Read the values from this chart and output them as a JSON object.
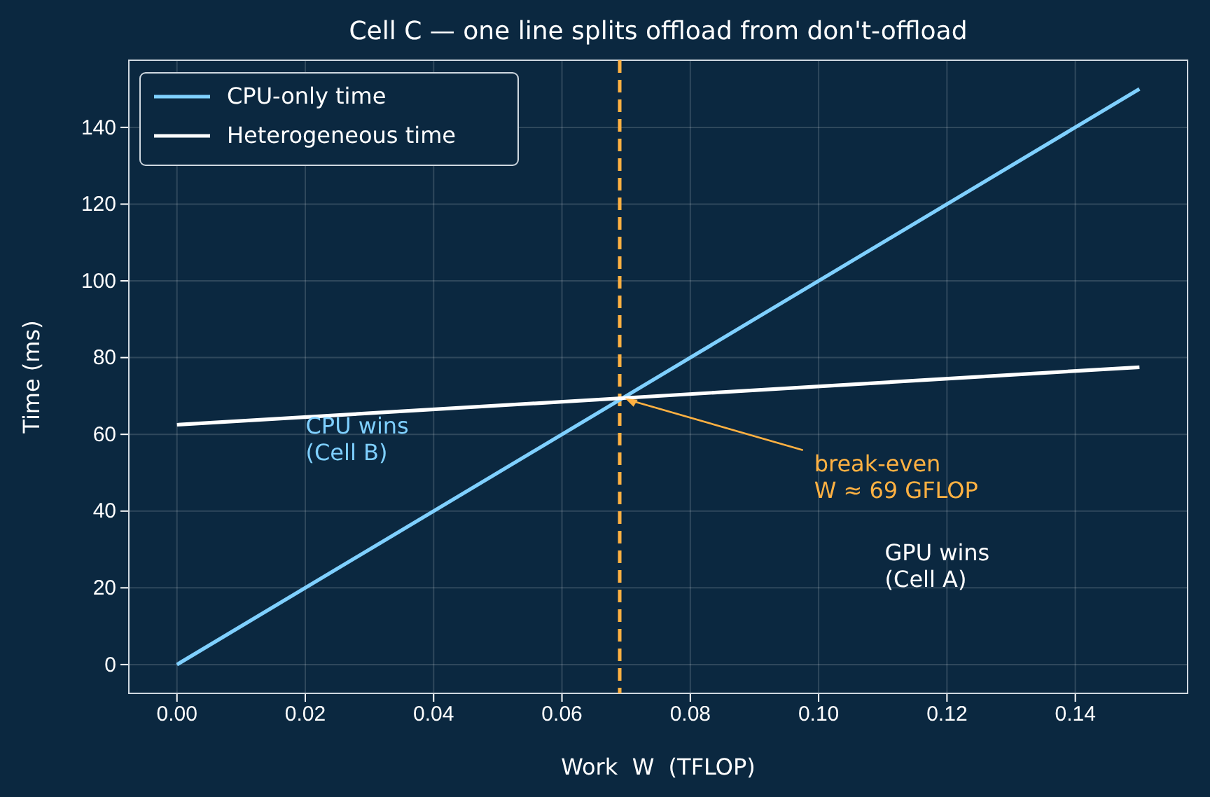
{
  "chart_data": {
    "type": "line",
    "title": "Cell C — one line splits offload from don't-offload",
    "xlabel": "Work  W  (TFLOP)",
    "ylabel": "Time (ms)",
    "x": [
      0,
      0.15
    ],
    "series": [
      {
        "name": "CPU-only time",
        "color": "#7fd0ff",
        "values": [
          0,
          150
        ]
      },
      {
        "name": "Heterogeneous time",
        "color": "#ffffff",
        "values": [
          62.5,
          77.5
        ]
      }
    ],
    "xlim": [
      -0.0075,
      0.1575
    ],
    "xticks": [
      {
        "value": 0,
        "label": "0.00"
      },
      {
        "value": 0.02,
        "label": "0.02"
      },
      {
        "value": 0.04,
        "label": "0.04"
      },
      {
        "value": 0.06,
        "label": "0.06"
      },
      {
        "value": 0.08,
        "label": "0.08"
      },
      {
        "value": 0.1,
        "label": "0.10"
      },
      {
        "value": 0.12,
        "label": "0.12"
      },
      {
        "value": 0.14,
        "label": "0.14"
      }
    ],
    "ylim": [
      -7.5,
      157.5
    ],
    "yticks": [
      0,
      20,
      40,
      60,
      80,
      100,
      120,
      140
    ],
    "ref_lines": [
      {
        "axis": "x",
        "value": 0.069,
        "color": "#ffb142",
        "line_style": "dashed"
      }
    ],
    "annotations": [
      "CPU wins\n(Cell B)",
      {
        "text": "break-even\nW ≈ 69 GFLOP",
        "x": 0.0694,
        "y": 69.4
      },
      "GPU wins\n(Cell A)"
    ],
    "grid": true,
    "legend": "top left",
    "line_style": "solid",
    "marker": "none"
  }
}
